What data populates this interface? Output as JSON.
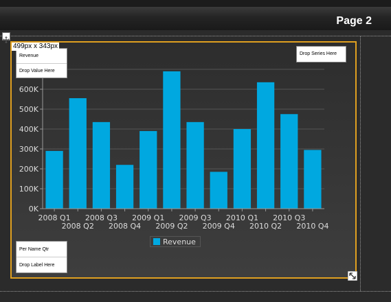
{
  "page": {
    "title": "Page 2"
  },
  "designer": {
    "size_label": "499px x 343px",
    "values_zone": {
      "field": "Revenue",
      "placeholder": "Drop Value Here"
    },
    "series_zone": {
      "placeholder": "Drop Series Here"
    },
    "labels_zone": {
      "field": "Per Name Qtr",
      "placeholder": "Drop Label Here"
    }
  },
  "chart_data": {
    "type": "bar",
    "categories": [
      "2008 Q1",
      "2008 Q2",
      "2008 Q3",
      "2008 Q4",
      "2009 Q1",
      "2009 Q2",
      "2009 Q3",
      "2009 Q4",
      "2010 Q1",
      "2010 Q2",
      "2010 Q3",
      "2010 Q4"
    ],
    "series": [
      {
        "name": "Revenue",
        "values": [
          290000,
          555000,
          435000,
          220000,
          390000,
          690000,
          435000,
          185000,
          400000,
          635000,
          475000,
          295000
        ],
        "color": "#00a8e0"
      }
    ],
    "ylim": [
      0,
      800000
    ],
    "yticks": [
      {
        "value": 0,
        "label": "0K"
      },
      {
        "value": 100000,
        "label": "100K"
      },
      {
        "value": 200000,
        "label": "200K"
      },
      {
        "value": 300000,
        "label": "300K"
      },
      {
        "value": 400000,
        "label": "400K"
      },
      {
        "value": 500000,
        "label": "500K"
      },
      {
        "value": 600000,
        "label": "600K"
      },
      {
        "value": 700000,
        "label": ""
      }
    ],
    "grid": true,
    "legend": "bottom-center"
  }
}
